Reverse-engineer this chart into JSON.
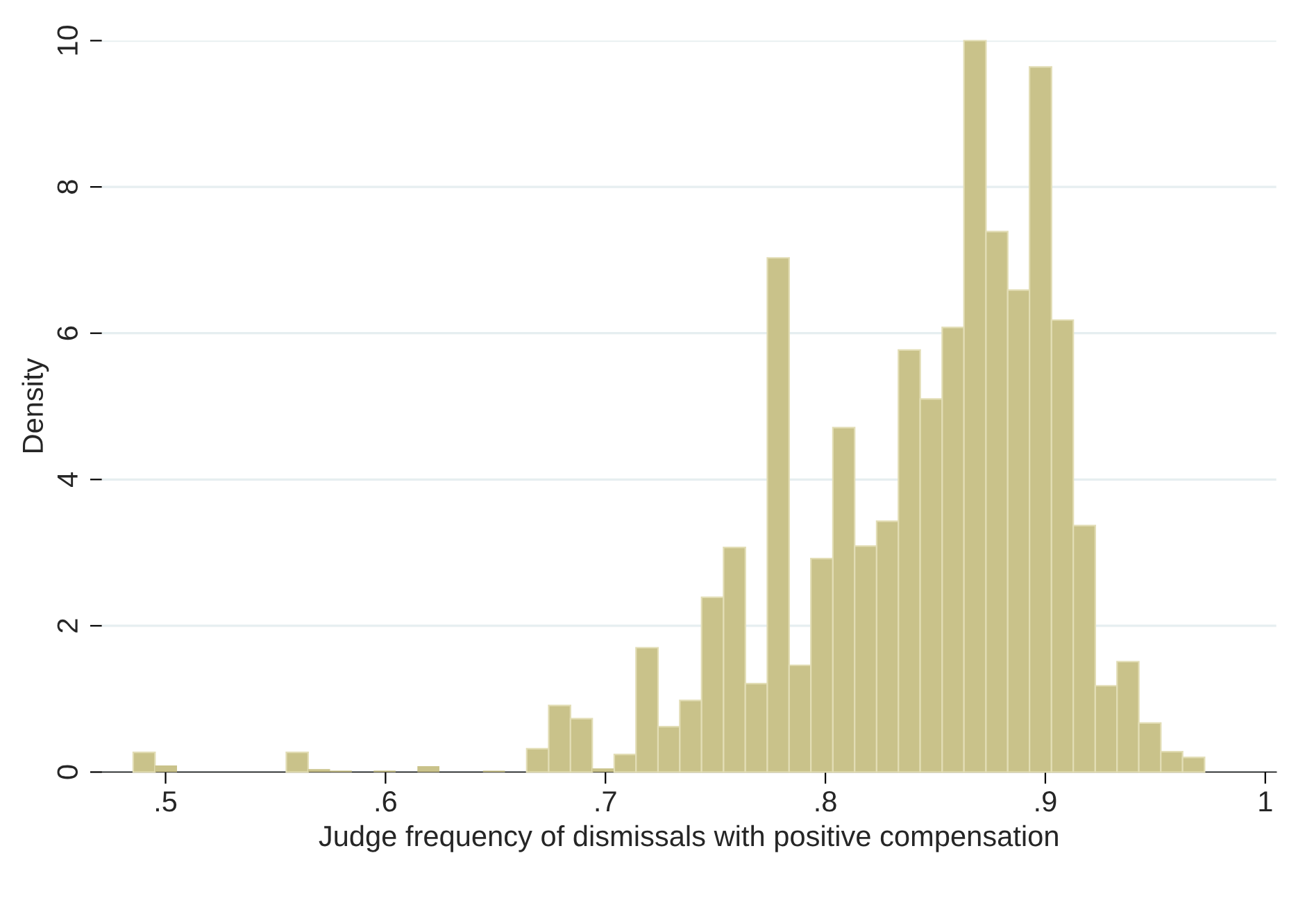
{
  "chart_data": {
    "type": "histogram",
    "xlabel": "Judge frequency of dismissals with positive compensation",
    "ylabel": "Density",
    "bins": [
      0.4853,
      0.4952,
      0.5052,
      0.5151,
      0.5251,
      0.535,
      0.5449,
      0.5549,
      0.5648,
      0.5748,
      0.5847,
      0.5946,
      0.6046,
      0.6145,
      0.6245,
      0.6344,
      0.6443,
      0.6543,
      0.6642,
      0.6742,
      0.6841,
      0.694,
      0.704,
      0.7139,
      0.7239,
      0.7338,
      0.7437,
      0.7537,
      0.7636,
      0.7736,
      0.7835,
      0.7934,
      0.8034,
      0.8133,
      0.8233,
      0.8332,
      0.8431,
      0.8531,
      0.863,
      0.873,
      0.8829,
      0.8928,
      0.9028,
      0.9127,
      0.9227,
      0.9326,
      0.9425,
      0.9525,
      0.9624,
      0.9724
    ],
    "values": [
      0.27,
      0.09,
      0,
      0,
      0,
      0,
      0,
      0.27,
      0.04,
      0.02,
      0,
      0.02,
      0,
      0.08,
      0,
      0,
      0.02,
      0,
      0.32,
      0.91,
      0.73,
      0.05,
      0.24,
      1.7,
      0.62,
      0.98,
      2.39,
      3.07,
      1.21,
      7.03,
      1.46,
      2.92,
      4.71,
      3.09,
      3.43,
      5.77,
      5.1,
      6.08,
      10,
      7.39,
      6.59,
      9.64,
      6.18,
      3.37,
      1.18,
      1.51,
      0.67,
      0.28,
      0.2
    ],
    "color": "#c9c28a",
    "xlim": [
      0.471,
      1.005
    ],
    "xticks": [
      {
        "value": 0.5,
        "label": ".5"
      },
      {
        "value": 0.6,
        "label": ".6"
      },
      {
        "value": 0.7,
        "label": ".7"
      },
      {
        "value": 0.8,
        "label": ".8"
      },
      {
        "value": 0.9,
        "label": ".9"
      },
      1
    ],
    "ylim": [
      0,
      10
    ],
    "yticks": [
      0,
      2,
      4,
      6,
      8,
      10
    ],
    "grid": "y"
  }
}
